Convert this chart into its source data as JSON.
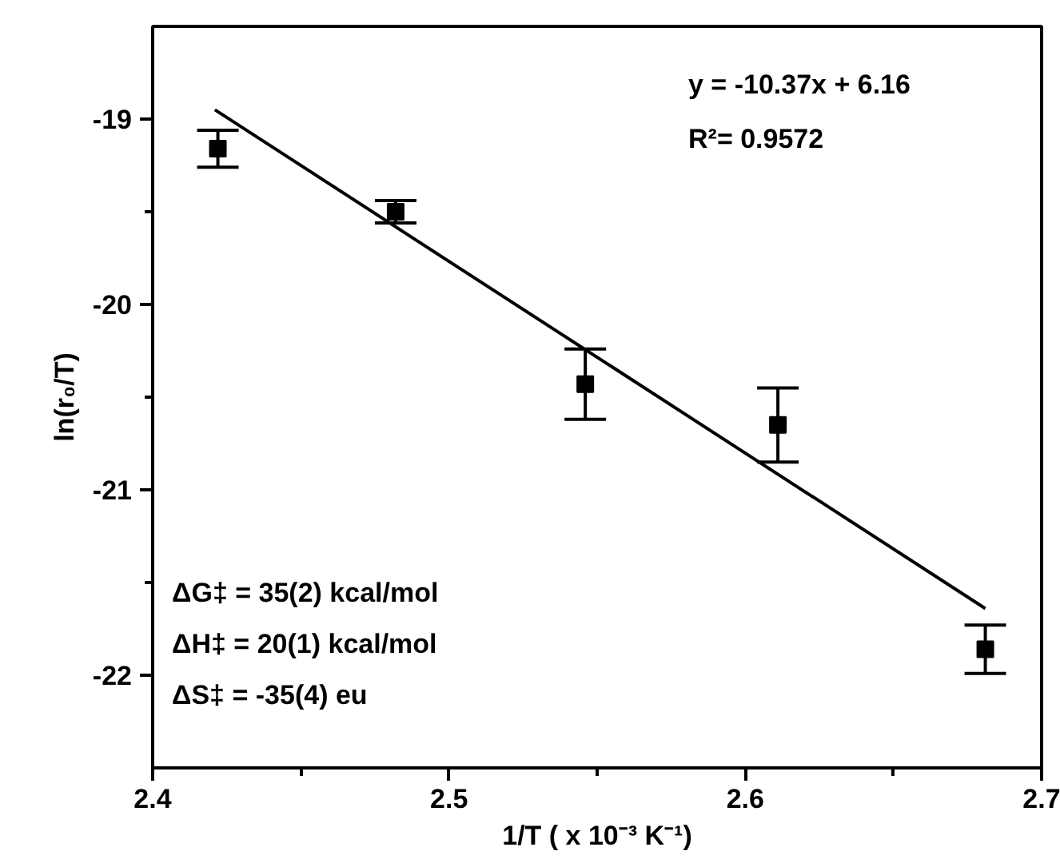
{
  "chart_data": {
    "type": "scatter",
    "xlabel": "1/T ( x 10⁻³ K⁻¹)",
    "ylabel": "ln(r₀/T)",
    "x": [
      2.422,
      2.482,
      2.546,
      2.611,
      2.681
    ],
    "series": [
      {
        "color": "#000000",
        "values": [
          -19.16,
          -19.5,
          -20.43,
          -20.65,
          -21.86
        ],
        "errors": [
          0.1,
          0.06,
          0.19,
          0.2,
          0.13
        ],
        "marker": "square"
      },
      {
        "type": "line",
        "color": "#000000",
        "x": [
          2.421,
          2.681
        ],
        "values": [
          -18.95,
          -21.64
        ],
        "line_style": "solid"
      }
    ],
    "xlim": [
      2.4,
      2.7
    ],
    "ylim": [
      -22.5,
      -18.5
    ],
    "xticks": [
      2.4,
      {
        "value": 2.45,
        "label": null
      },
      2.5,
      {
        "value": 2.55,
        "label": null
      },
      2.6,
      {
        "value": 2.65,
        "label": null
      },
      2.7
    ],
    "yticks": [
      -22,
      {
        "value": -21.5,
        "label": null
      },
      -21,
      {
        "value": -20.5,
        "label": null
      },
      -20,
      {
        "value": -19.5,
        "label": null
      },
      -19
    ],
    "grid": false,
    "annotations": [
      "y = -10.37x + 6.16",
      "R²= 0.9572",
      "ΔG‡ = 35(2) kcal/mol",
      "ΔH‡ = 20(1) kcal/mol",
      "ΔS‡ = -35(4) eu"
    ]
  }
}
